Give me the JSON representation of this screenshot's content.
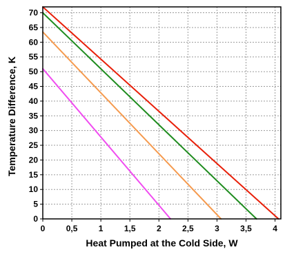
{
  "chart_data": {
    "type": "line",
    "title": "",
    "xlabel": "Heat Pumped at the Cold Side, W",
    "ylabel": "Temperature Difference, K",
    "xlim": [
      0,
      4.1
    ],
    "ylim": [
      0,
      72
    ],
    "x_ticks": [
      "0",
      "0,5",
      "1",
      "1,5",
      "2",
      "2,5",
      "3",
      "3,5",
      "4"
    ],
    "x_tick_values": [
      0,
      0.5,
      1,
      1.5,
      2,
      2.5,
      3,
      3.5,
      4
    ],
    "y_ticks": [
      "0",
      "5",
      "10",
      "15",
      "20",
      "25",
      "30",
      "35",
      "40",
      "45",
      "50",
      "55",
      "60",
      "65",
      "70"
    ],
    "y_tick_values": [
      0,
      5,
      10,
      15,
      20,
      25,
      30,
      35,
      40,
      45,
      50,
      55,
      60,
      65,
      70
    ],
    "grid": true,
    "series": [
      {
        "color": "#e8200a",
        "x": [
          0,
          4.06
        ],
        "y": [
          72,
          0
        ]
      },
      {
        "color": "#1f8c1f",
        "x": [
          0,
          3.68
        ],
        "y": [
          70,
          0
        ]
      },
      {
        "color": "#f59a4e",
        "x": [
          0,
          3.07
        ],
        "y": [
          63.5,
          0
        ]
      },
      {
        "color": "#f04cf0",
        "x": [
          0,
          2.2
        ],
        "y": [
          51,
          0
        ]
      }
    ]
  }
}
